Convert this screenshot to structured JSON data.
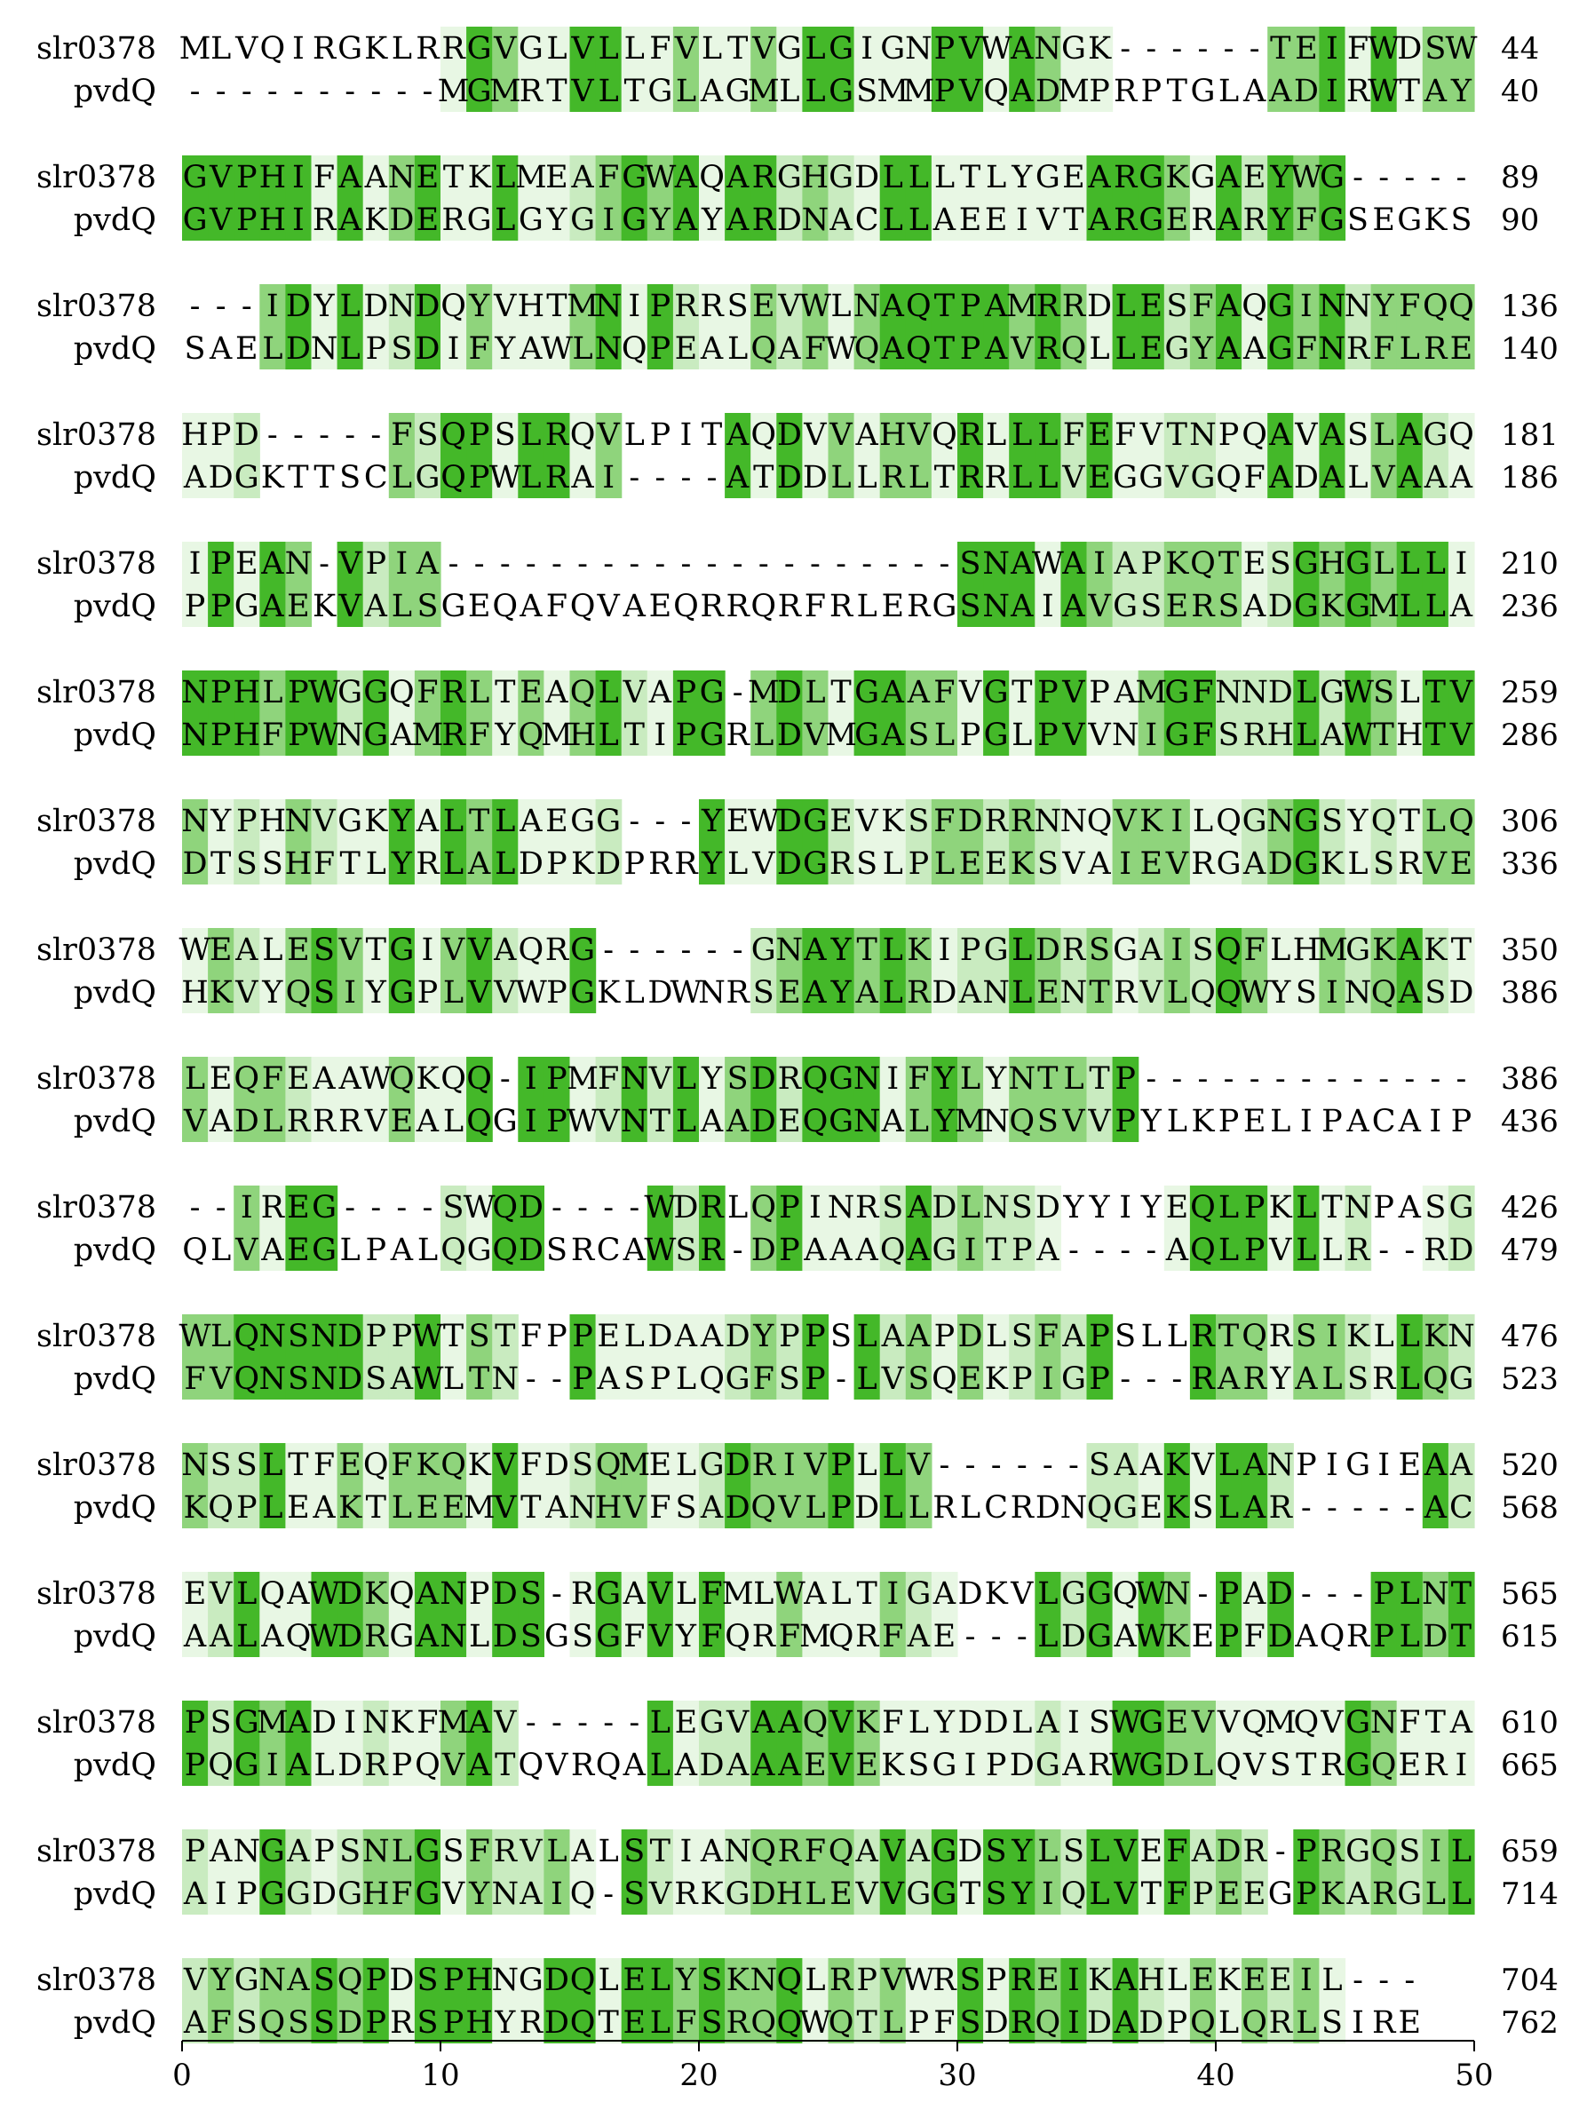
{
  "sequences": [
    "slr0378",
    "pvdQ"
  ],
  "block_width": 50,
  "colors": {
    "identical": "#44b829",
    "strong": "#8fd47c",
    "weak": "#c9ebc0",
    "faint": "#e8f7e4"
  },
  "blocks": [
    {
      "s1": "MLVQIRGKLRRGVGLVLLFVLTVGLGIGNPVWANGK------TEIFWDSW",
      "s2": "----------MGMRTVLTGLAGMLLGSMMPVQADMPRPTGLAADIRWTAY",
      "n1": "44",
      "n2": "40"
    },
    {
      "s1": "GVPHIFAANETKLMEAFGWAQARGHGDLLLTLYGEARGKGAEYWG-----",
      "s2": "GVPHIRAKDERGLGYGIGYAYARDNACLLAEEIVTARGERARYFGSEGKS",
      "n1": "89",
      "n2": "90"
    },
    {
      "s1": "---IDYLDNDQYVHTMNIPRRSEVWLNAQTPAMRRDLESFAQGINNYFQQ",
      "s2": "SAELDNLPSDIFYAWLNQPEALQAFWQAQTPAVRQLLEGYAAGFNRFLRE",
      "n1": "136",
      "n2": "140"
    },
    {
      "s1": "HPD-----FSQPSLRQVLPITAQDVVAHVQRLLLFEFVTNPQAVASLAGQ",
      "s2": "ADGKTTSCLGQPWLRAI----ATDDLLRLTRRLLVEGGVGQFADALVAAA",
      "n1": "181",
      "n2": "186"
    },
    {
      "s1": "IPEAN-VPIA--------------------SNAWAIAPKQTESGHGLLLI",
      "s2": "PPGAEKVALSGEQAFQVAEQRRQRFRLERGSNAIAVGSERSADGKGMLLA",
      "n1": "210",
      "n2": "236"
    },
    {
      "s1": "NPHLPWGGQFRLTEAQLVAPG-MDLTGAAFVGTPVPAMGFNNDLGWSLTV",
      "s2": "NPHFPWNGAMRFYQMHLTIPGRLDVMGASLPGLPVVNIGFSRHLAWTHTV",
      "n1": "259",
      "n2": "286"
    },
    {
      "s1": "NYPHNVGKYALTLAEGG---YEWDGEVKSFDRRNNQVKILQGNGSYQTLQ",
      "s2": "DTSSHFTLYRLALDPKDPRRYLVDGRSLPLEEKSVAIEVRGADGKLSRVE",
      "n1": "306",
      "n2": "336"
    },
    {
      "s1": "WEALESVTGIVVAQRG------GNAYTLKIPGLDRSGAISQFLHMGKAKT",
      "s2": "HKVYQSIYGPLVVWPGKLDWNRSEAYALRDANLENTRVLQQWYSINQASD",
      "n1": "350",
      "n2": "386"
    },
    {
      "s1": "LEQFEAAWQKQQ-IPMFNVLYSDRQGNIFYLYNTLTP-------------",
      "s2": "VADLRRRVEALQGIPWVNTLAADEQGNALYMNQSVVPYLKPELIPACAIP",
      "n1": "386",
      "n2": "436"
    },
    {
      "s1": "--IREG----SWQD----WDRLQPINRSADLNSDYYIYEQLPKLTNPASG",
      "s2": "QLVAEGLPALQGQDSRCAWSR-DPAAAQAGITPA----AQLPVLLR--RD",
      "n1": "426",
      "n2": "479"
    },
    {
      "s1": "WLQNSNDPPWTSTFPPELDAADYPPSLAAPDLSFAPSLLRTQRSIKLLKN",
      "s2": "FVQNSNDSAWLTN--PASPLQGFSP-LVSQEKPIGP---RARYALSRLQG",
      "n1": "476",
      "n2": "523"
    },
    {
      "s1": "NSSLTFEQFKQKVFDSQMELGDRIVPLLV------SAAKVLANPIGIEAA",
      "s2": "KQPLEAKTLEEMVTANHVFSADQVLPDLLRLCRDNQGEKSLAR-----AC",
      "n1": "520",
      "n2": "568"
    },
    {
      "s1": "EVLQAWDKQANPDS-RGAVLFMLWALTIGADKVLGGQWN-PAD---PLNT",
      "s2": "AALAQWDRGANLDSGSGFVYFQRFMQRFAE---LDGAWKEPFDAQRPLDT",
      "n1": "565",
      "n2": "615"
    },
    {
      "s1": "PSGMADINKFMAV-----LEGVAAQVKFLYDDLAISWGEVVQMQVGNFTA",
      "s2": "PQGIALDRPQVATQVRQALADAAAEVEKSGIPDGARWGDLQVSTRGQERI",
      "n1": "610",
      "n2": "665"
    },
    {
      "s1": "PANGAPSNLGSFRVLALSTIANQRFQAVAGDSYLSLVEFADR-PRGQSIL",
      "s2": "AIPGGDGHFGVYNAIQ-SVRKGDHLEVVGGTSYIQLVTFPEEGPKARGLL",
      "n1": "659",
      "n2": "714"
    },
    {
      "s1": "VYGNASQPDSPHNGDQLELYSKNQLRPVWRSPREIKAHLEKEEIL---",
      "s2": "AFSQSSDPRSPHYRDQTELFSRQQWQTLPFSDRQIDADPQLQRLSIRE",
      "n1": "704",
      "n2": "762"
    }
  ],
  "axis": {
    "ticks": [
      0,
      10,
      20,
      30,
      40,
      50
    ],
    "range": [
      0,
      50
    ]
  }
}
